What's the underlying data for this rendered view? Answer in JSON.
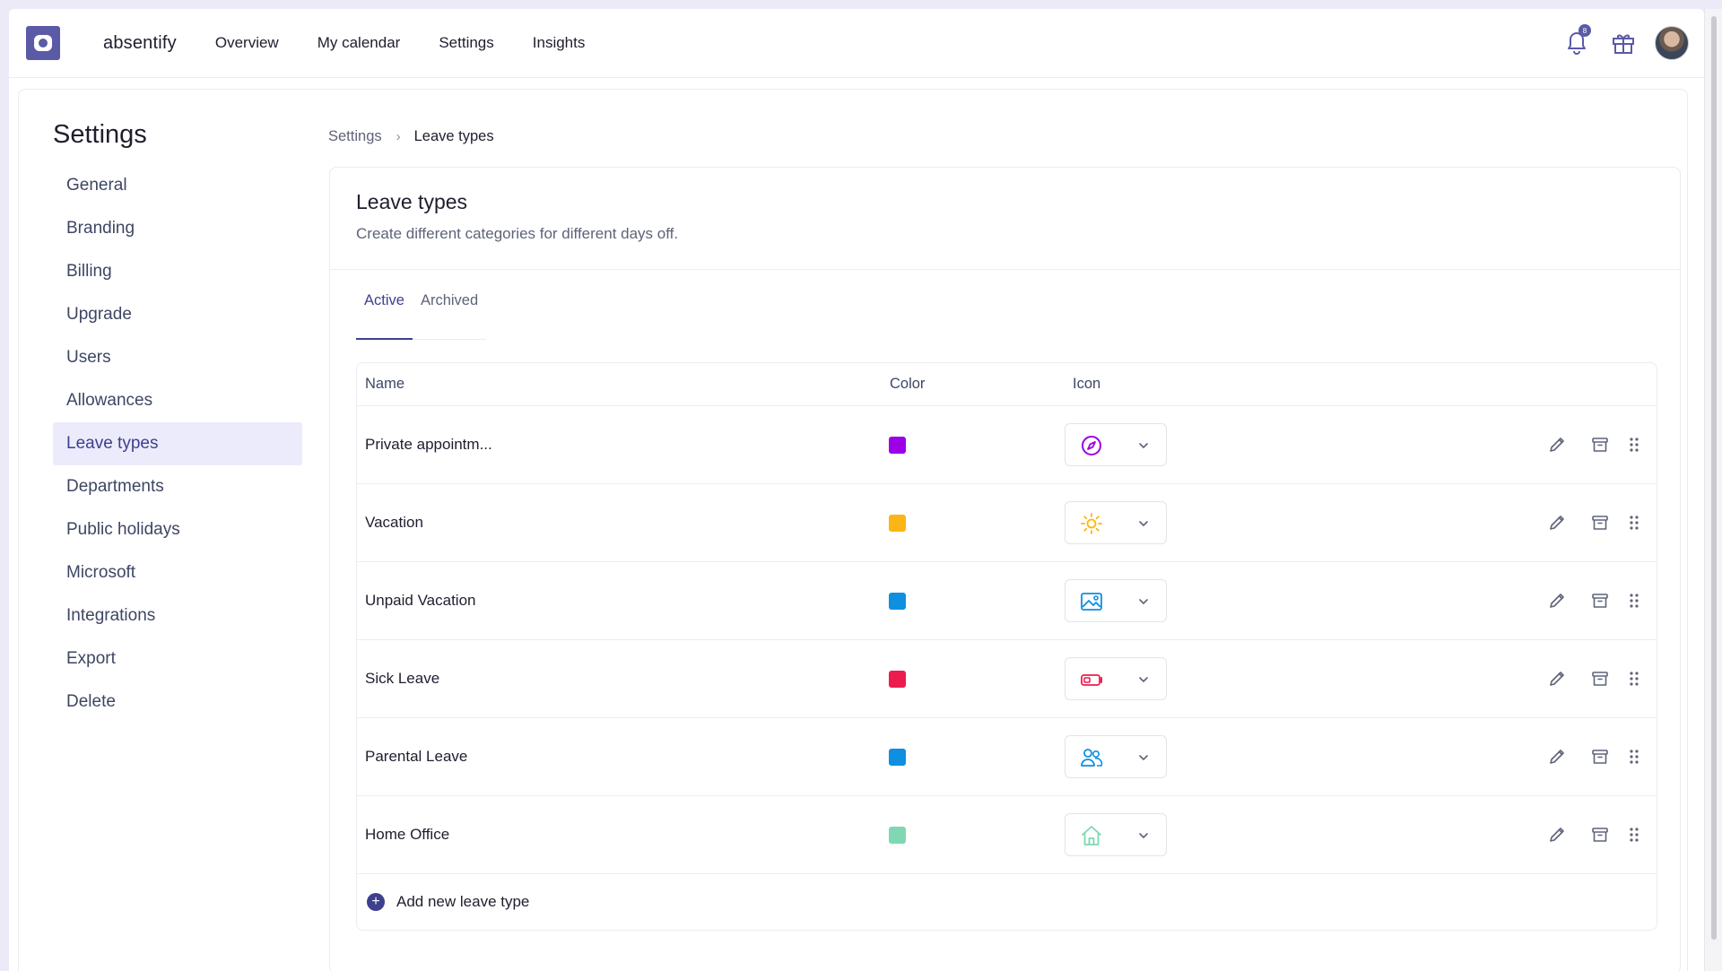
{
  "nav": {
    "brand": "absentify",
    "links": [
      "Overview",
      "My calendar",
      "Settings",
      "Insights"
    ],
    "notification_count": "8",
    "icons": [
      "bell-icon",
      "gift-icon",
      "user-avatar"
    ]
  },
  "sidebar": {
    "title": "Settings",
    "items": [
      {
        "label": "General"
      },
      {
        "label": "Branding"
      },
      {
        "label": "Billing"
      },
      {
        "label": "Upgrade"
      },
      {
        "label": "Users"
      },
      {
        "label": "Allowances"
      },
      {
        "label": "Leave types",
        "active": true
      },
      {
        "label": "Departments"
      },
      {
        "label": "Public holidays"
      },
      {
        "label": "Microsoft"
      },
      {
        "label": "Integrations"
      },
      {
        "label": "Export"
      },
      {
        "label": "Delete"
      }
    ]
  },
  "breadcrumb": {
    "parent": "Settings",
    "current": "Leave types"
  },
  "panel": {
    "title": "Leave types",
    "description": "Create different categories for different days off.",
    "tabs": [
      {
        "label": "Active",
        "active": true
      },
      {
        "label": "Archived",
        "active": false
      }
    ]
  },
  "table": {
    "headers": {
      "name": "Name",
      "color": "Color",
      "icon": "Icon"
    },
    "rows": [
      {
        "name": "Private appointm...",
        "color": "#9b00e6",
        "icon": "compass-icon"
      },
      {
        "name": "Vacation",
        "color": "#fbb615",
        "icon": "sun-icon"
      },
      {
        "name": "Unpaid Vacation",
        "color": "#0e8fe0",
        "icon": "image-icon"
      },
      {
        "name": "Sick Leave",
        "color": "#ec1c4e",
        "icon": "battery-low-icon"
      },
      {
        "name": "Parental Leave",
        "color": "#0e8fe0",
        "icon": "users-icon"
      },
      {
        "name": "Home Office",
        "color": "#7fd8b2",
        "icon": "home-icon"
      }
    ],
    "row_actions": [
      "pencil-icon",
      "archive-icon",
      "drag-handle-icon"
    ],
    "add_label": "Add new leave type"
  },
  "colors": {
    "accent": "#3e3f8e",
    "brand": "#5b5aa6",
    "active_bg": "#ecebfb"
  }
}
